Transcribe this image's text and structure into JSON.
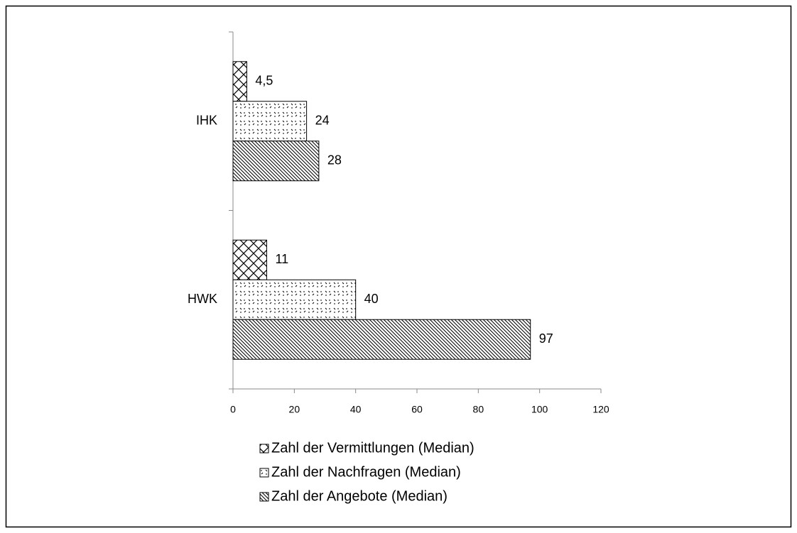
{
  "chart_data": {
    "type": "hbar",
    "categories": [
      "HWK",
      "IHK"
    ],
    "series": [
      {
        "name": "Zahl der Vermittlungen (Median)",
        "color": "#000000",
        "pattern": "crosshatch",
        "values": [
          11,
          4.5
        ],
        "value_labels": [
          "11",
          "4,5"
        ]
      },
      {
        "name": "Zahl der Nachfragen (Median)",
        "color": "#000000",
        "pattern": "dots",
        "values": [
          40,
          24
        ]
      },
      {
        "name": "Zahl der Angebote (Median)",
        "color": "#000000",
        "pattern": "diagonal",
        "values": [
          97,
          28
        ]
      }
    ],
    "xlim": [
      0,
      120
    ],
    "xticks": [
      0,
      20,
      40,
      60,
      80,
      100,
      120
    ],
    "legend": "bottom"
  }
}
